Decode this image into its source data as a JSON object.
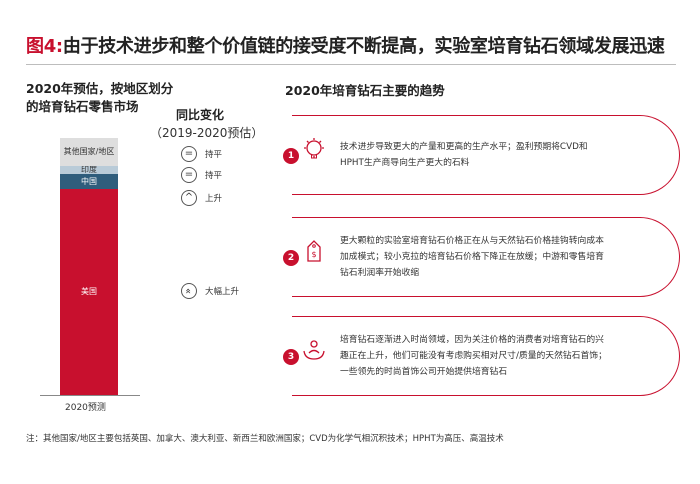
{
  "header": {
    "figure_label": "图4:",
    "title": "由于技术进步和整个价值链的接受度不断提高，实验室培育钻石领域发展迅速"
  },
  "left_panel": {
    "heading_line1": "2020年预估，按地区划分",
    "heading_line2": "的培育钻石零售市场",
    "yoy_title": "同比变化",
    "yoy_subtitle": "（2019-2020预估）"
  },
  "chart_data": {
    "type": "bar",
    "stacked": true,
    "percent": true,
    "categories": [
      "2020预测"
    ],
    "series": [
      {
        "name": "美国",
        "values": [
          80
        ],
        "color": "#c8102e",
        "change": "大幅上升",
        "change_icon": "double-chevron-up"
      },
      {
        "name": "中国",
        "values": [
          6
        ],
        "color": "#2f5d7c",
        "change": "上升",
        "change_icon": "chevron-up"
      },
      {
        "name": "印度",
        "values": [
          3
        ],
        "color": "#b9cbd8",
        "change": "持平",
        "change_icon": "equals"
      },
      {
        "name": "其他国家/地区",
        "values": [
          11
        ],
        "color": "#dedede",
        "change": "持平",
        "change_icon": "equals"
      }
    ],
    "ylim": [
      0,
      100
    ]
  },
  "right_panel": {
    "heading": "2020年培育钻石主要的趋势",
    "trends": [
      {
        "number": "1",
        "icon": "gear-lightbulb-icon",
        "text": "技术进步导致更大的产量和更高的生产水平；盈利预期将CVD和HPHT生产商导向生产更大的石料"
      },
      {
        "number": "2",
        "icon": "price-tag-icon",
        "text": "更大颗粒的实验室培育钻石价格正在从与天然钻石价格挂钩转向成本加成模式；较小克拉的培育钻石价格下降正在放缓；中游和零售培育钻石利润率开始收缩"
      },
      {
        "number": "3",
        "icon": "person-hands-icon",
        "text": "培育钻石逐渐进入时尚领域，因为关注价格的消费者对培育钻石的兴趣正在上升，他们可能没有考虑购买相对尺寸/质量的天然钻石首饰；一些领先的时尚首饰公司开始提供培育钻石"
      }
    ]
  },
  "footnote": "注：其他国家/地区主要包括英国、加拿大、澳大利亚、新西兰和欧洲国家；CVD为化学气相沉积技术；HPHT为高压、高温技术",
  "colors": {
    "accent": "#c8102e",
    "navy": "#2f5d7c"
  }
}
